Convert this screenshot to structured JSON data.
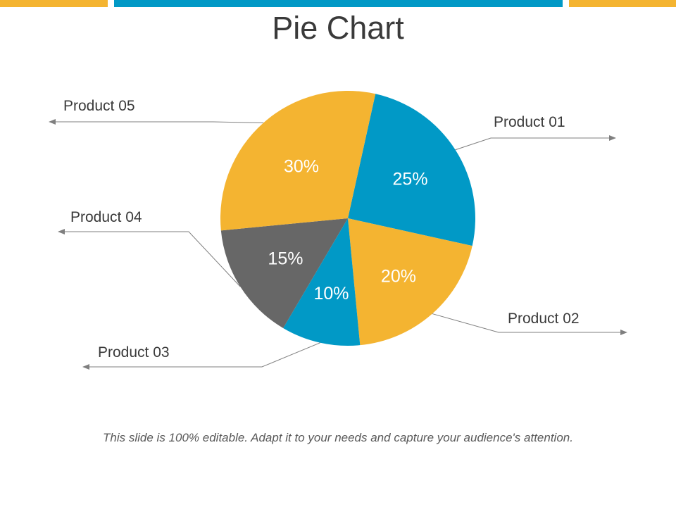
{
  "title": "Pie Chart",
  "footer": "This slide is 100% editable. Adapt it to your needs and capture your audience's attention.",
  "colors": {
    "orange": "#F4B431",
    "blue": "#0199C6",
    "gray": "#676767",
    "text": "#3a3a3a",
    "line": "#7f7f7f"
  },
  "chart_data": {
    "type": "pie",
    "title": "Pie Chart",
    "slices": [
      {
        "label": "Product 01",
        "value": 25,
        "display": "25%",
        "color": "#0199C6"
      },
      {
        "label": "Product 02",
        "value": 20,
        "display": "20%",
        "color": "#F4B431"
      },
      {
        "label": "Product 03",
        "value": 10,
        "display": "10%",
        "color": "#0199C6"
      },
      {
        "label": "Product 04",
        "value": 15,
        "display": "15%",
        "color": "#676767"
      },
      {
        "label": "Product 05",
        "value": 30,
        "display": "30%",
        "color": "#F4B431"
      }
    ]
  }
}
